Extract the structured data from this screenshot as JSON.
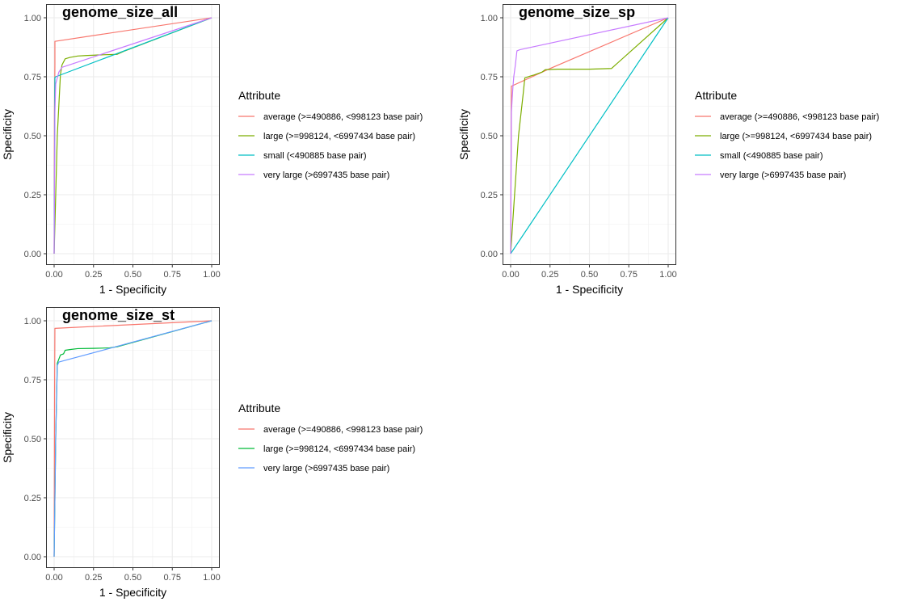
{
  "chart_data": [
    {
      "type": "line",
      "title": "genome_size_all",
      "xlabel": "1 - Specificity",
      "ylabel": "Specificity",
      "xlim": [
        0,
        1
      ],
      "ylim": [
        0,
        1
      ],
      "xticks": [
        "0.00",
        "0.25",
        "0.50",
        "0.75",
        "1.00"
      ],
      "yticks": [
        "0.00",
        "0.25",
        "0.50",
        "0.75",
        "1.00"
      ],
      "grid": true,
      "legend_title": "Attribute",
      "legend_position": "right",
      "series": [
        {
          "name": "average (>=490886, <998123 base pair)",
          "color": "#F8766D",
          "points": [
            [
              0,
              0
            ],
            [
              0.002,
              0.6
            ],
            [
              0.005,
              0.8
            ],
            [
              0.005,
              0.9
            ],
            [
              1,
              1
            ]
          ]
        },
        {
          "name": "large (>=998124, <6997434 base pair)",
          "color": "#7CAE00",
          "points": [
            [
              0,
              0
            ],
            [
              0.02,
              0.5
            ],
            [
              0.04,
              0.76
            ],
            [
              0.05,
              0.8
            ],
            [
              0.07,
              0.826
            ],
            [
              0.1,
              0.832
            ],
            [
              0.15,
              0.838
            ],
            [
              0.2,
              0.84
            ],
            [
              0.3,
              0.843
            ],
            [
              0.4,
              0.845
            ],
            [
              0.45,
              0.86
            ],
            [
              1,
              1
            ]
          ]
        },
        {
          "name": "small (<490885 base pair)",
          "color": "#00BFC4",
          "points": [
            [
              0,
              0
            ],
            [
              0.005,
              0.747
            ],
            [
              0.01,
              0.75
            ],
            [
              1,
              1
            ]
          ]
        },
        {
          "name": "very large (>6997435 base pair)",
          "color": "#C77CFF",
          "points": [
            [
              0,
              0
            ],
            [
              0.005,
              0.6
            ],
            [
              0.01,
              0.72
            ],
            [
              0.03,
              0.77
            ],
            [
              0.05,
              0.79
            ],
            [
              1,
              1
            ]
          ]
        }
      ]
    },
    {
      "type": "line",
      "title": "genome_size_sp",
      "xlabel": "1 - Specificity",
      "ylabel": "Specificity",
      "xlim": [
        0,
        1
      ],
      "ylim": [
        0,
        1
      ],
      "xticks": [
        "0.00",
        "0.25",
        "0.50",
        "0.75",
        "1.00"
      ],
      "yticks": [
        "0.00",
        "0.25",
        "0.50",
        "0.75",
        "1.00"
      ],
      "grid": true,
      "legend_title": "Attribute",
      "legend_position": "right",
      "series": [
        {
          "name": "average (>=490886, <998123 base pair)",
          "color": "#F8766D",
          "points": [
            [
              0,
              0
            ],
            [
              0.005,
              0.71
            ],
            [
              0.25,
              0.785
            ],
            [
              1,
              1
            ]
          ]
        },
        {
          "name": "large (>=998124, <6997434 base pair)",
          "color": "#7CAE00",
          "points": [
            [
              0,
              0
            ],
            [
              0.05,
              0.5
            ],
            [
              0.08,
              0.68
            ],
            [
              0.09,
              0.745
            ],
            [
              0.12,
              0.752
            ],
            [
              0.15,
              0.758
            ],
            [
              0.2,
              0.77
            ],
            [
              0.22,
              0.78
            ],
            [
              0.3,
              0.782
            ],
            [
              0.5,
              0.782
            ],
            [
              0.64,
              0.785
            ],
            [
              1,
              1
            ]
          ]
        },
        {
          "name": "small (<490885 base pair)",
          "color": "#00BFC4",
          "points": [
            [
              0,
              0
            ],
            [
              1,
              1
            ]
          ]
        },
        {
          "name": "very large (>6997435 base pair)",
          "color": "#C77CFF",
          "points": [
            [
              0,
              0
            ],
            [
              0.005,
              0.6
            ],
            [
              0.01,
              0.66
            ],
            [
              0.015,
              0.71
            ],
            [
              0.02,
              0.75
            ],
            [
              0.03,
              0.8
            ],
            [
              0.04,
              0.86
            ],
            [
              0.06,
              0.865
            ],
            [
              1,
              1
            ]
          ]
        }
      ]
    },
    {
      "type": "line",
      "title": "genome_size_st",
      "xlabel": "1 - Specificity",
      "ylabel": "Specificity",
      "xlim": [
        0,
        1
      ],
      "ylim": [
        0,
        1
      ],
      "xticks": [
        "0.00",
        "0.25",
        "0.50",
        "0.75",
        "1.00"
      ],
      "yticks": [
        "0.00",
        "0.25",
        "0.50",
        "0.75",
        "1.00"
      ],
      "grid": true,
      "legend_title": "Attribute",
      "legend_position": "right",
      "series": [
        {
          "name": "average (>=490886, <998123 base pair)",
          "color": "#F8766D",
          "points": [
            [
              0,
              0
            ],
            [
              0.003,
              0.7
            ],
            [
              0.005,
              0.968
            ],
            [
              1,
              1
            ]
          ]
        },
        {
          "name": "large (>=998124, <6997434 base pair)",
          "color": "#00BA38",
          "points": [
            [
              0,
              0
            ],
            [
              0.01,
              0.5
            ],
            [
              0.02,
              0.82
            ],
            [
              0.04,
              0.855
            ],
            [
              0.06,
              0.86
            ],
            [
              0.07,
              0.875
            ],
            [
              0.1,
              0.878
            ],
            [
              0.15,
              0.882
            ],
            [
              0.25,
              0.883
            ],
            [
              0.35,
              0.885
            ],
            [
              0.4,
              0.89
            ],
            [
              1,
              1
            ]
          ]
        },
        {
          "name": "very large (>6997435 base pair)",
          "color": "#619CFF",
          "points": [
            [
              0,
              0
            ],
            [
              0.01,
              0.5
            ],
            [
              0.02,
              0.81
            ],
            [
              0.03,
              0.825
            ],
            [
              1,
              1
            ]
          ]
        }
      ]
    }
  ]
}
